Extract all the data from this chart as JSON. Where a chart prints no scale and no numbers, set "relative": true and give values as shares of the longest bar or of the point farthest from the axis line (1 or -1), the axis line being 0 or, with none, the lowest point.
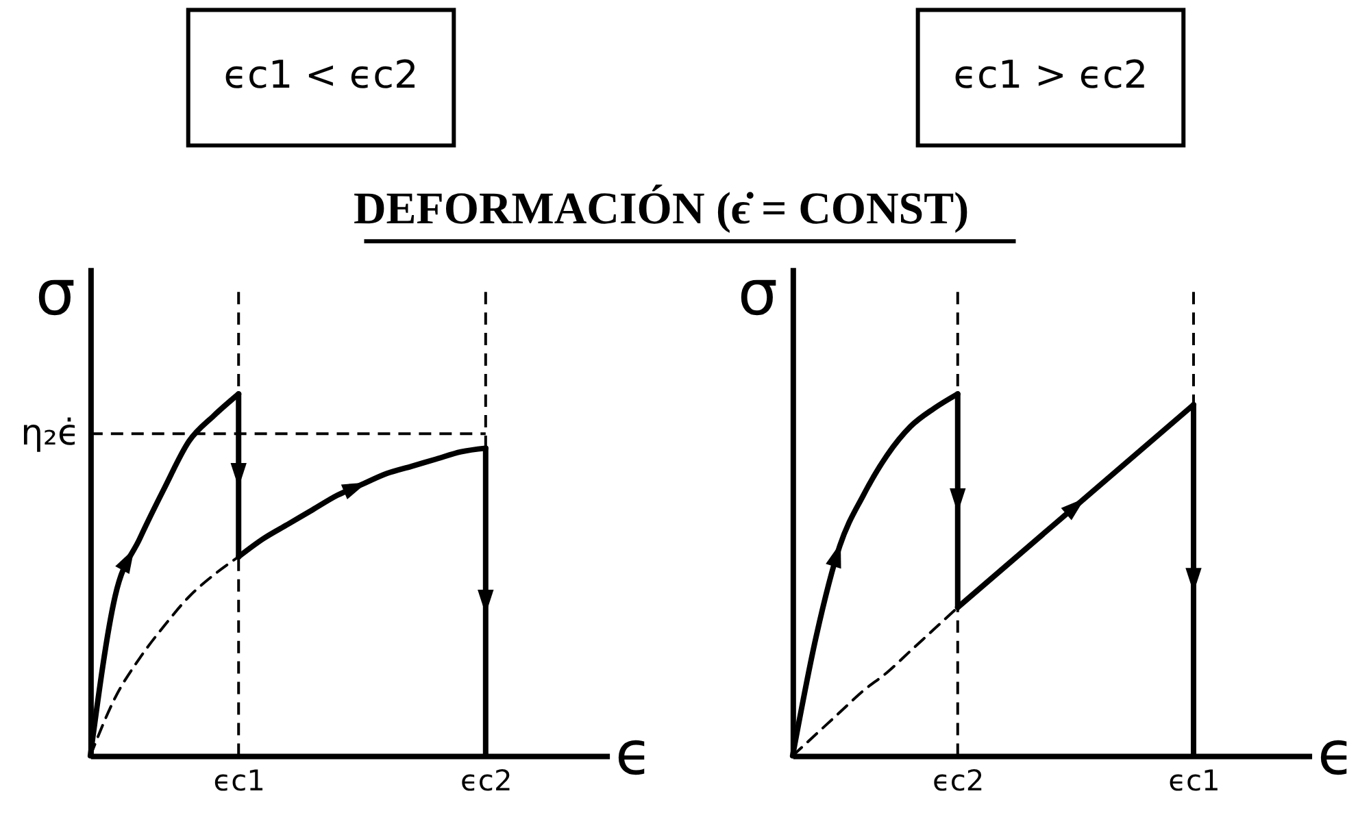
{
  "chart_data": [
    {
      "type": "line",
      "title": "ϵc1 < ϵc2",
      "annotations": [
        "DEFORMACIÓN (ϵ̇ = CONST)"
      ],
      "xlabel": "ϵ",
      "ylabel": "σ",
      "relative": true,
      "line_style": "solid",
      "categories": [
        null,
        null,
        null,
        null,
        null,
        null,
        "ϵc1",
        null,
        null,
        null,
        null,
        null,
        null,
        null,
        null,
        null,
        "ϵc2",
        null,
        null,
        null,
        null,
        null
      ],
      "series": [
        {
          "color": "#000000",
          "values": [
            0,
            0.44,
            0.6,
            0.74,
            0.87,
            0.94,
            1,
            null,
            null,
            null,
            null,
            null,
            null,
            null,
            null,
            null,
            null,
            null,
            null,
            null,
            null,
            null
          ]
        },
        {
          "color": "#000000",
          "x": [
            "ϵc1",
            "ϵc1"
          ],
          "values": [
            1,
            0.55
          ]
        },
        {
          "color": "#000000",
          "values": [
            null,
            null,
            null,
            null,
            null,
            null,
            0.55,
            0.6,
            0.64,
            0.68,
            0.72,
            0.75,
            0.78,
            0.8,
            0.82,
            0.84,
            0.85,
            null,
            null,
            null,
            null,
            null
          ]
        },
        {
          "color": "#000000",
          "x": [
            "ϵc2",
            "ϵc2"
          ],
          "values": [
            0.85,
            0
          ]
        },
        {
          "color": "#000000",
          "line_style": "dashed",
          "values": [
            0,
            0.16,
            0.27,
            0.36,
            0.44,
            0.5,
            0.55,
            null,
            null,
            null,
            null,
            null,
            null,
            null,
            null,
            null,
            null,
            null,
            null,
            null,
            null,
            null
          ]
        }
      ],
      "ref_lines": [
        {
          "axis": "x",
          "value": "ϵc1",
          "color": "#000000",
          "line_style": "dashed"
        },
        {
          "axis": "x",
          "value": "ϵc2",
          "color": "#000000",
          "line_style": "dashed"
        },
        {
          "axis": "y",
          "value": 0.89,
          "label": "η₂ϵ̇",
          "color": "#000000",
          "line_style": "dashed"
        }
      ]
    },
    {
      "type": "line",
      "title": "ϵc1 > ϵc2",
      "xlabel": "ϵ",
      "ylabel": "σ",
      "relative": true,
      "line_style": "solid",
      "categories": [
        null,
        null,
        null,
        null,
        null,
        null,
        null,
        "ϵc2",
        null,
        null,
        null,
        null,
        null,
        null,
        null,
        null,
        null,
        "ϵc1",
        null,
        null,
        null,
        null,
        null
      ],
      "series": [
        {
          "color": "#000000",
          "values": [
            0,
            0.33,
            0.58,
            0.72,
            0.83,
            0.91,
            0.96,
            1,
            null,
            null,
            null,
            null,
            null,
            null,
            null,
            null,
            null,
            null,
            null,
            null,
            null,
            null,
            null
          ]
        },
        {
          "color": "#000000",
          "x": [
            "ϵc2",
            "ϵc2"
          ],
          "values": [
            1,
            0.41
          ]
        },
        {
          "color": "#000000",
          "x": [
            "ϵc2",
            "ϵc1"
          ],
          "values": [
            0.41,
            0.97
          ]
        },
        {
          "color": "#000000",
          "x": [
            "ϵc1",
            "ϵc1"
          ],
          "values": [
            0.97,
            0
          ]
        },
        {
          "color": "#000000",
          "line_style": "dashed",
          "values": [
            0,
            0.06,
            0.12,
            0.18,
            0.23,
            0.29,
            0.35,
            0.41,
            null,
            null,
            null,
            null,
            null,
            null,
            null,
            null,
            null,
            null,
            null,
            null,
            null,
            null,
            null
          ]
        }
      ],
      "ref_lines": [
        {
          "axis": "x",
          "value": "ϵc2",
          "color": "#000000",
          "line_style": "dashed"
        },
        {
          "axis": "x",
          "value": "ϵc1",
          "color": "#000000",
          "line_style": "dashed"
        }
      ]
    }
  ]
}
